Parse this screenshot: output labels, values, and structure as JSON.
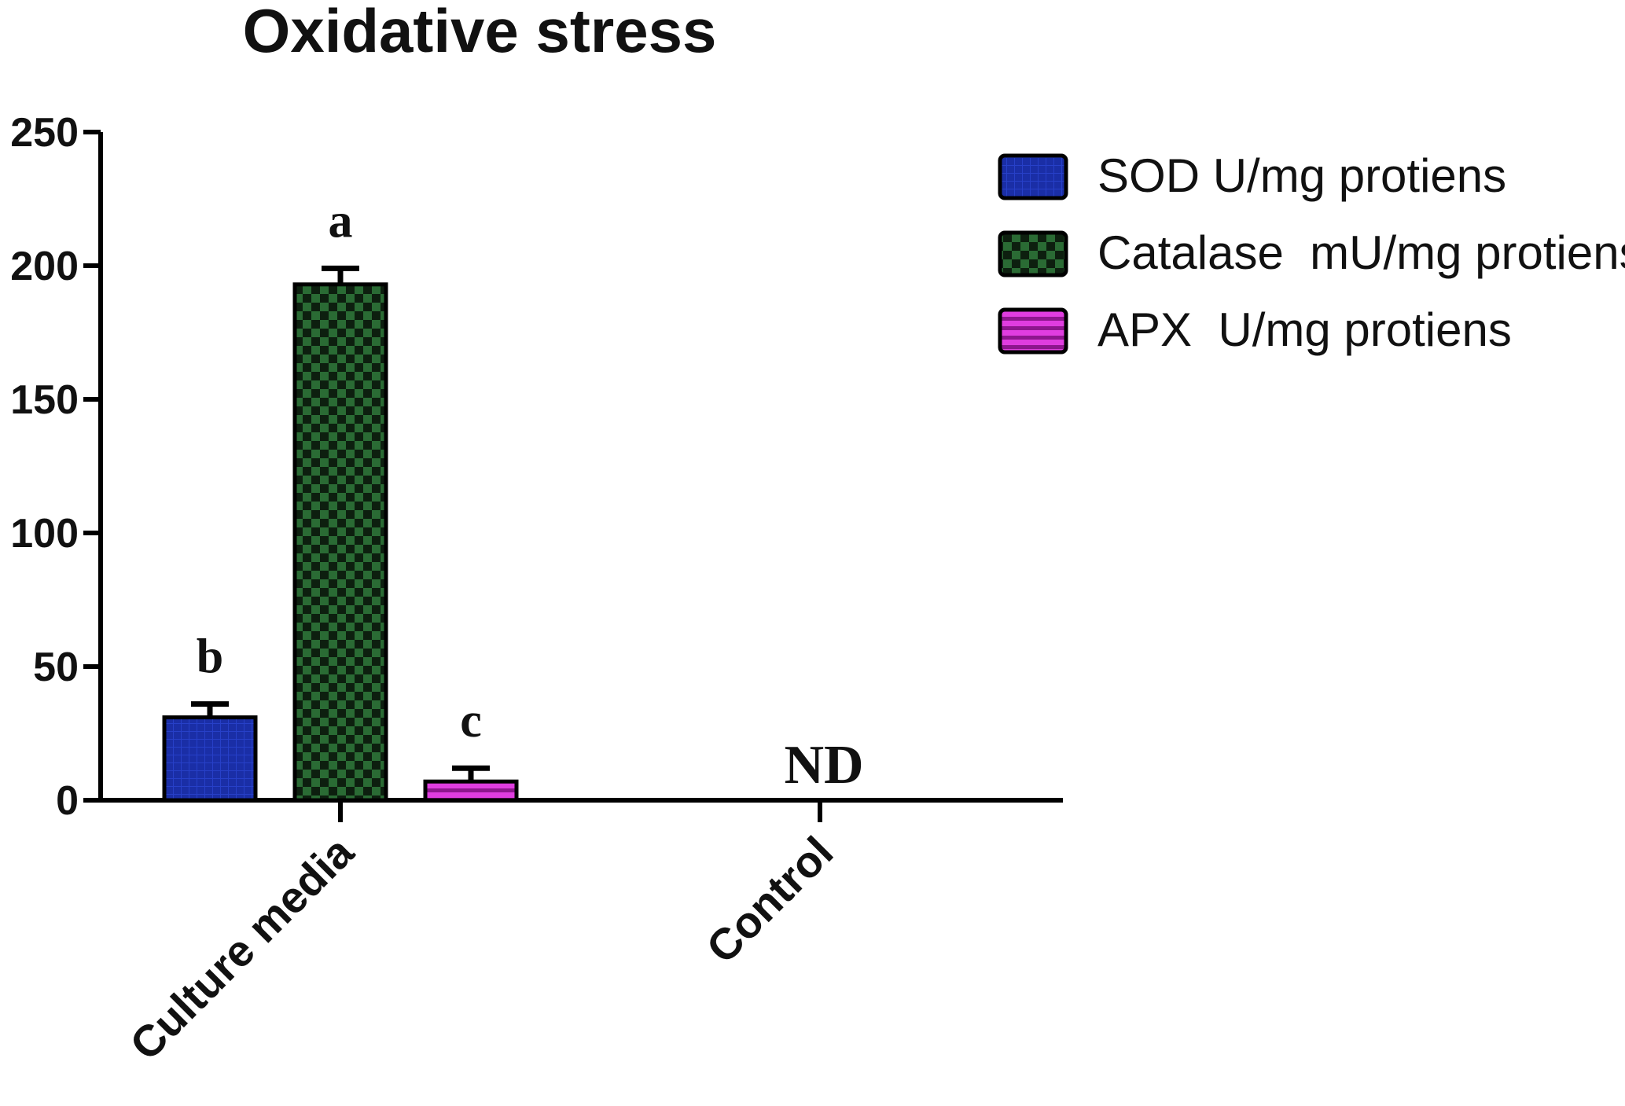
{
  "chart_data": {
    "type": "bar",
    "title": "Oxidative stress",
    "xlabel": "",
    "ylabel": "",
    "categories": [
      "Culture media",
      "Control"
    ],
    "ylim": [
      0,
      250
    ],
    "yticks": [
      "0",
      "50",
      "100",
      "150",
      "200",
      "250"
    ],
    "series": [
      {
        "name": "SOD U/mg protiens",
        "values": [
          31,
          null
        ],
        "errors": [
          5,
          null
        ],
        "labels": [
          "b",
          null
        ],
        "color": "#1a2ea6",
        "pattern": "fine-grid"
      },
      {
        "name": "Catalase  mU/mg protiens",
        "values": [
          193,
          null
        ],
        "errors": [
          6,
          null
        ],
        "labels": [
          "a",
          null
        ],
        "color": "#1e5a2a",
        "pattern": "checker"
      },
      {
        "name": "APX  U/mg protiens",
        "values": [
          7,
          null
        ],
        "errors": [
          5,
          null
        ],
        "labels": [
          "c",
          null
        ],
        "color": "#c21fc2",
        "pattern": "horizontal-lines"
      }
    ],
    "annotations": [
      {
        "category": "Control",
        "text": "ND"
      }
    ],
    "legend_position": "top-right",
    "grid": false
  }
}
